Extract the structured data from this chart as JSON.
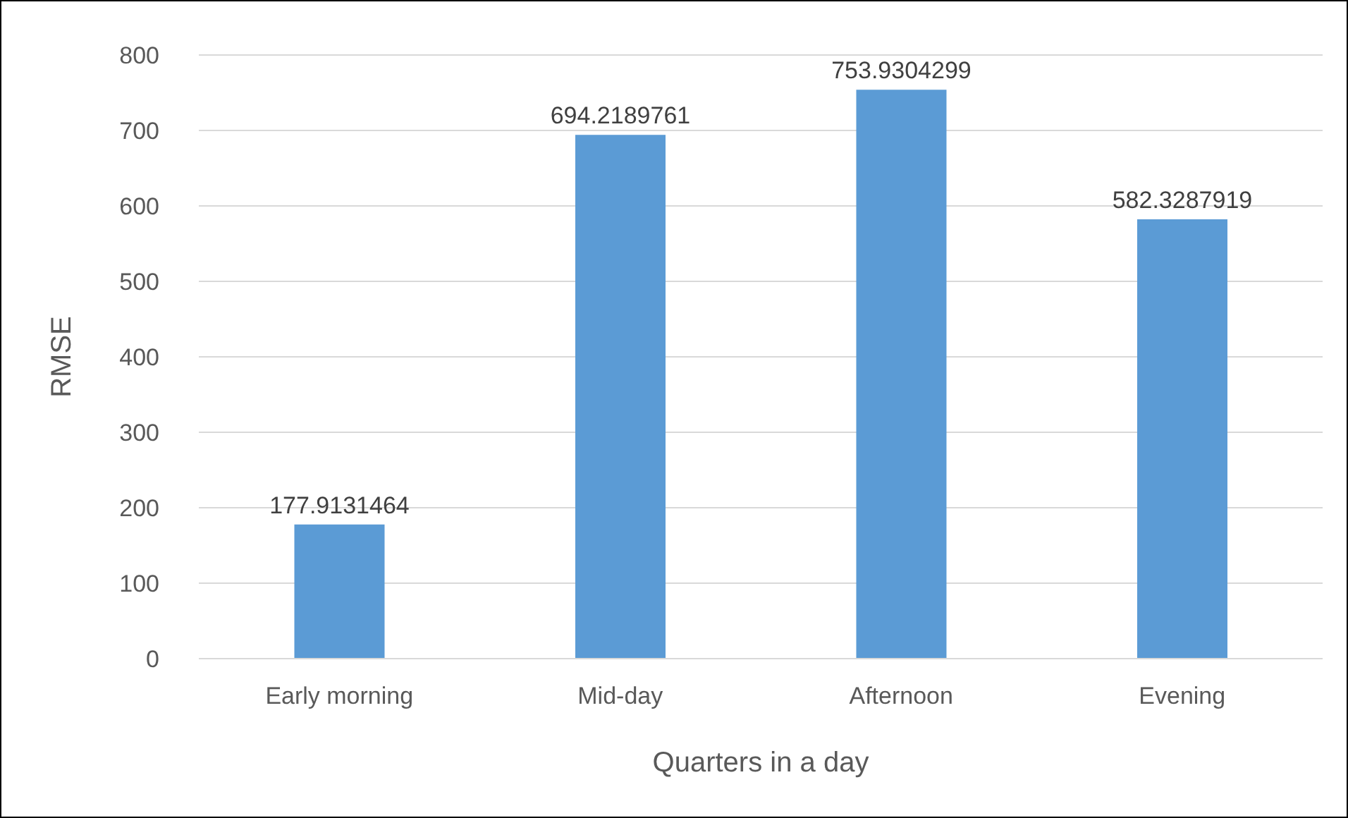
{
  "chart_data": {
    "type": "bar",
    "xlabel": "Quarters in a day",
    "ylabel": "RMSE",
    "categories": [
      "Early morning",
      "Mid-day",
      "Afternoon",
      "Evening"
    ],
    "values": [
      177.9131464,
      694.2189761,
      753.9304299,
      582.3287919
    ],
    "color": "#5b9bd5",
    "ylim": [
      0,
      800
    ],
    "yticks": [
      0,
      100,
      200,
      300,
      400,
      500,
      600,
      700,
      800
    ],
    "grid": "y",
    "data_labels": true
  }
}
